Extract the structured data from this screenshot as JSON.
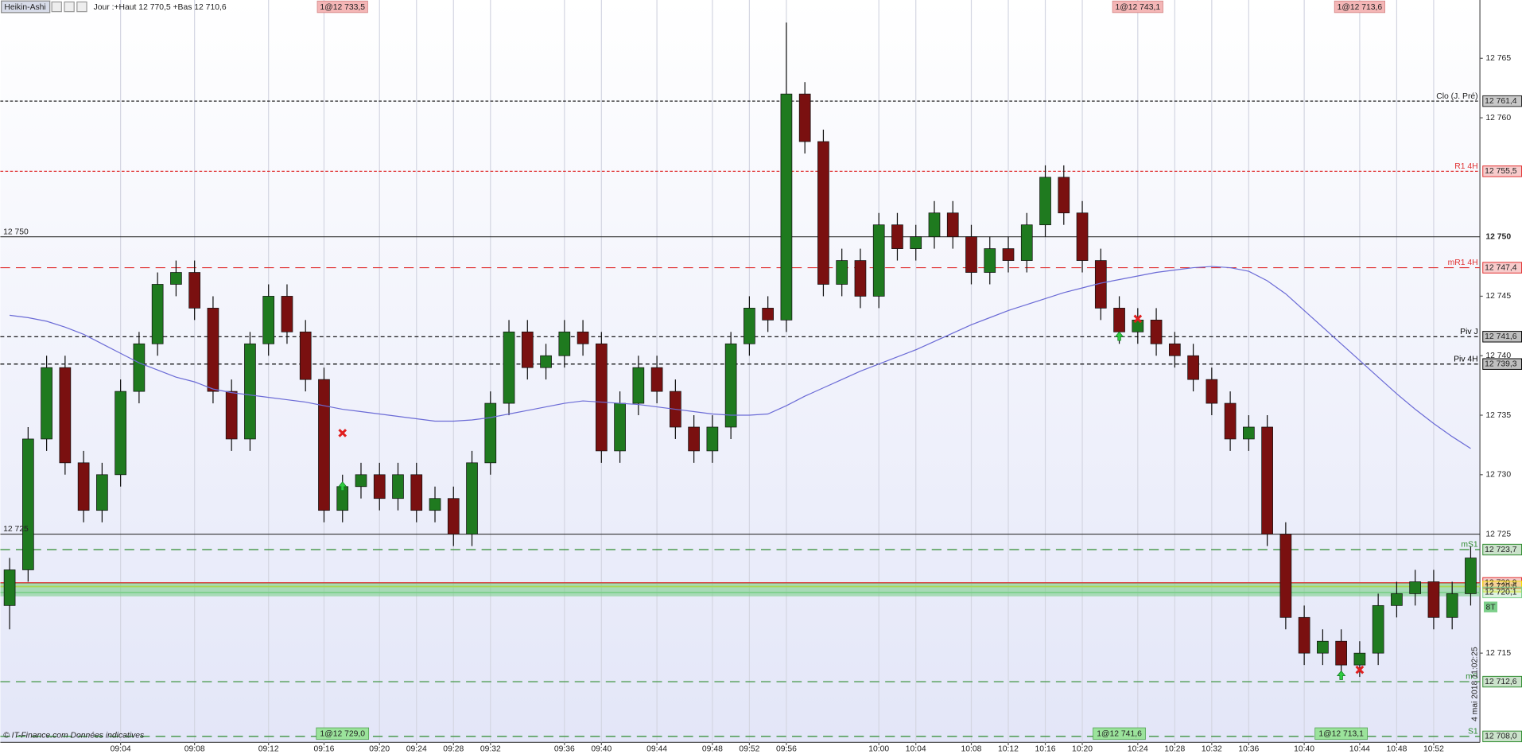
{
  "header": {
    "title": "Heikin-Ashi",
    "info": "Jour :+Haut 12 770,5 +Bas 12 710,6"
  },
  "footer": {
    "copyright": "© IT-Finance.com Données indicatives",
    "timestamp": "4 mai 2018 11:02:25",
    "badge": "8T"
  },
  "chart_data": {
    "type": "candlestick",
    "categories": [
      null,
      null,
      null,
      null,
      null,
      null,
      "09:04",
      null,
      null,
      null,
      "09:08",
      null,
      null,
      null,
      "09:12",
      null,
      null,
      "09:16",
      null,
      null,
      "09:20",
      null,
      "09:24",
      null,
      "09:28",
      null,
      "09:32",
      null,
      null,
      null,
      "09:36",
      null,
      "09:40",
      null,
      null,
      "09:44",
      null,
      null,
      "09:48",
      null,
      "09:52",
      null,
      "09:56",
      null,
      null,
      null,
      null,
      "10:00",
      null,
      "10:04",
      null,
      null,
      "10:08",
      null,
      "10:12",
      null,
      "10:16",
      null,
      "10:20",
      null,
      null,
      "10:24",
      null,
      "10:28",
      null,
      "10:32",
      null,
      "10:36",
      null,
      null,
      "10:40",
      null,
      null,
      "10:44",
      null,
      "10:48",
      null,
      "10:52",
      null,
      null
    ],
    "open": [
      12719,
      12722,
      12733,
      12739,
      12731,
      12727,
      12730,
      12737,
      12741,
      12746,
      12747,
      12744,
      12737,
      12733,
      12741,
      12745,
      12742,
      12738,
      12727,
      12729,
      12730,
      12728,
      12730,
      12727,
      12728,
      12725,
      12731,
      12736,
      12742,
      12739,
      12740,
      12742,
      12741,
      12732,
      12736,
      12739,
      12737,
      12734,
      12732,
      12734,
      12741,
      12744,
      12743,
      12762,
      12758,
      12746,
      12748,
      12745,
      12751,
      12749,
      12750,
      12752,
      12750,
      12747,
      12749,
      12748,
      12751,
      12755,
      12752,
      12748,
      12744,
      12742,
      12743,
      12741,
      12740,
      12738,
      12736,
      12733,
      12734,
      12725,
      12718,
      12715,
      12716,
      12714,
      12715,
      12719,
      12720,
      12721,
      12718,
      12720
    ],
    "high": [
      12723,
      12734,
      12740,
      12740,
      12732,
      12731,
      12738,
      12742,
      12747,
      12748,
      12748,
      12745,
      12738,
      12742,
      12746,
      12746,
      12743,
      12739,
      12730,
      12731,
      12731,
      12731,
      12731,
      12729,
      12729,
      12732,
      12737,
      12743,
      12743,
      12741,
      12743,
      12743,
      12742,
      12737,
      12740,
      12740,
      12738,
      12735,
      12735,
      12742,
      12745,
      12745,
      12768,
      12763,
      12759,
      12749,
      12749,
      12752,
      12752,
      12751,
      12753,
      12753,
      12751,
      12750,
      12750,
      12752,
      12756,
      12756,
      12753,
      12749,
      12745,
      12744,
      12744,
      12742,
      12741,
      12739,
      12737,
      12735,
      12735,
      12726,
      12719,
      12717,
      12717,
      12716,
      12720,
      12721,
      12722,
      12722,
      12721,
      12724
    ],
    "low": [
      12717,
      12721,
      12732,
      12730,
      12726,
      12726,
      12729,
      12736,
      12740,
      12745,
      12743,
      12736,
      12732,
      12732,
      12740,
      12741,
      12737,
      12726,
      12726,
      12728,
      12727,
      12727,
      12726,
      12726,
      12724,
      12724,
      12730,
      12735,
      12738,
      12738,
      12739,
      12740,
      12731,
      12731,
      12735,
      12736,
      12733,
      12731,
      12731,
      12733,
      12740,
      12742,
      12742,
      12757,
      12745,
      12745,
      12744,
      12744,
      12748,
      12748,
      12749,
      12749,
      12746,
      12746,
      12747,
      12747,
      12750,
      12751,
      12747,
      12743,
      12741,
      12741,
      12740,
      12739,
      12737,
      12735,
      12732,
      12732,
      12724,
      12717,
      12714,
      12714,
      12713,
      12713,
      12714,
      12718,
      12719,
      12717,
      12717,
      12719
    ],
    "close": [
      12722,
      12733,
      12739,
      12731,
      12727,
      12730,
      12737,
      12741,
      12746,
      12747,
      12744,
      12737,
      12733,
      12741,
      12745,
      12742,
      12738,
      12727,
      12729,
      12730,
      12728,
      12730,
      12727,
      12728,
      12725,
      12731,
      12736,
      12742,
      12739,
      12740,
      12742,
      12741,
      12732,
      12736,
      12739,
      12737,
      12734,
      12732,
      12734,
      12741,
      12744,
      12743,
      12762,
      12758,
      12746,
      12748,
      12745,
      12751,
      12749,
      12750,
      12752,
      12750,
      12747,
      12749,
      12748,
      12751,
      12755,
      12752,
      12748,
      12744,
      12742,
      12743,
      12741,
      12740,
      12738,
      12736,
      12733,
      12734,
      12725,
      12718,
      12715,
      12716,
      12714,
      12715,
      12719,
      12720,
      12721,
      12718,
      12720,
      12723
    ],
    "up_color": "#1f7a1f",
    "down_color": "#7a1010",
    "ma": {
      "color": "#6b6bd6",
      "values": [
        12743.4,
        12743.2,
        12742.9,
        12742.4,
        12741.8,
        12741,
        12740.2,
        12739.4,
        12738.8,
        12738.2,
        12737.8,
        12737.2,
        12736.9,
        12736.7,
        12736.5,
        12736.3,
        12736.1,
        12735.8,
        12735.5,
        12735.3,
        12735.1,
        12734.9,
        12734.7,
        12734.5,
        12734.5,
        12734.6,
        12734.8,
        12735.1,
        12735.4,
        12735.7,
        12736,
        12736.2,
        12736.1,
        12736,
        12735.9,
        12735.7,
        12735.5,
        12735.3,
        12735.1,
        12735,
        12735,
        12735.1,
        12735.8,
        12736.6,
        12737.3,
        12738,
        12738.7,
        12739.3,
        12739.9,
        12740.5,
        12741.2,
        12741.9,
        12742.6,
        12743.2,
        12743.8,
        12744.3,
        12744.8,
        12745.3,
        12745.7,
        12746.1,
        12746.4,
        12746.7,
        12747,
        12747.2,
        12747.4,
        12747.5,
        12747.4,
        12747.1,
        12746.3,
        12745.2,
        12743.8,
        12742.4,
        12741,
        12739.6,
        12738.2,
        12736.8,
        12735.5,
        12734.3,
        12733.2,
        12732.2
      ]
    },
    "ylim": [
      12707.5,
      12769.9
    ],
    "yticks": [
      {
        "value": 12765,
        "label": "12 765"
      },
      {
        "value": 12760,
        "label": "12 760"
      },
      {
        "value": 12745,
        "label": "12 745"
      },
      {
        "value": 12740,
        "label": "12 740"
      },
      {
        "value": 12735,
        "label": "12 735"
      },
      {
        "value": 12730,
        "label": "12 730"
      },
      {
        "value": 12715,
        "label": "12 715"
      }
    ],
    "major_yticks": [
      {
        "value": 12750,
        "label": "12 750"
      },
      {
        "value": 12725,
        "label": "12 725"
      }
    ],
    "levels": [
      {
        "name": "Clo (J. Pré)",
        "value": 12761.4,
        "value_label": "12 761,4",
        "color": "#222222",
        "dash": "3,2"
      },
      {
        "name": "R1 4H",
        "value": 12755.5,
        "value_label": "12 755,5",
        "color": "#e03030",
        "dash": "3,2"
      },
      {
        "name": "mR1 4H",
        "value": 12747.4,
        "value_label": "12 747,4",
        "color": "#e03030",
        "dash": "10,6"
      },
      {
        "name": "Piv J",
        "value": 12741.6,
        "value_label": "12 741,6",
        "color": "#000000",
        "dash": "4,3"
      },
      {
        "name": "Piv 4H",
        "value": 12739.3,
        "value_label": "12 739,3",
        "color": "#000000",
        "dash": "4,3"
      },
      {
        "name": "mS1",
        "value": 12723.7,
        "value_label": "12 723,7",
        "color": "#2e8b2e",
        "dash": "10,6"
      },
      {
        "value": 12720.9,
        "value_label": "12 720,9",
        "color": "#e03030"
      },
      {
        "value": 12720.6,
        "value_label": "12 720,6",
        "color": "#f2e200"
      },
      {
        "value": 12720.1,
        "value_label": "12 720,1",
        "color": "#7ccf8a"
      },
      {
        "name": "mS",
        "value": 12712.6,
        "value_label": "12 712,6",
        "color": "#2e8b2e",
        "dash": "10,6"
      },
      {
        "name": "S1",
        "value": 12708,
        "value_label": "12 708,0",
        "color": "#2e8b2e",
        "dash": "10,6"
      }
    ],
    "sells": [
      {
        "index": 18,
        "value": 12733.5,
        "label": "1@12 733,5"
      },
      {
        "index": 61,
        "value": 12743.1,
        "label": "1@12 743,1"
      },
      {
        "index": 73,
        "value": 12713.6,
        "label": "1@12 713,6"
      }
    ],
    "buys": [
      {
        "index": 18,
        "value": 12729.0,
        "label": "1@12 729,0"
      },
      {
        "index": 60,
        "value": 12741.6,
        "label": "1@12 741,6"
      },
      {
        "index": 72,
        "value": 12713.1,
        "label": "1@12 713,1"
      }
    ],
    "grid": true
  }
}
